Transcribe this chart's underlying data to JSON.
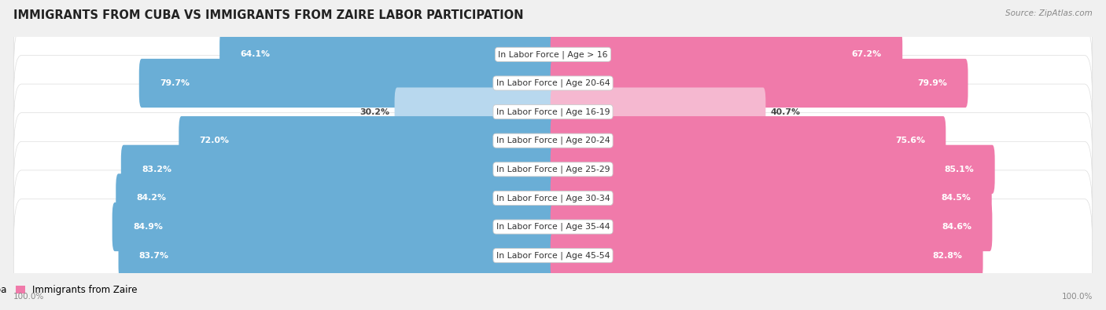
{
  "title": "IMMIGRANTS FROM CUBA VS IMMIGRANTS FROM ZAIRE LABOR PARTICIPATION",
  "source": "Source: ZipAtlas.com",
  "categories": [
    "In Labor Force | Age > 16",
    "In Labor Force | Age 20-64",
    "In Labor Force | Age 16-19",
    "In Labor Force | Age 20-24",
    "In Labor Force | Age 25-29",
    "In Labor Force | Age 30-34",
    "In Labor Force | Age 35-44",
    "In Labor Force | Age 45-54"
  ],
  "cuba_values": [
    64.1,
    79.7,
    30.2,
    72.0,
    83.2,
    84.2,
    84.9,
    83.7
  ],
  "zaire_values": [
    67.2,
    79.9,
    40.7,
    75.6,
    85.1,
    84.5,
    84.6,
    82.8
  ],
  "cuba_color": "#6aaed6",
  "cuba_color_light": "#b8d8ee",
  "zaire_color": "#f07aaa",
  "zaire_color_light": "#f5b8d0",
  "row_bg_color": "#e8e8e8",
  "row_inner_color": "#f5f5f5",
  "max_value": 100.0,
  "legend_cuba": "Immigrants from Cuba",
  "legend_zaire": "Immigrants from Zaire",
  "title_fontsize": 10.5,
  "label_fontsize": 7.8,
  "value_fontsize": 7.8,
  "footer_fontsize": 7.5,
  "source_fontsize": 7.5
}
